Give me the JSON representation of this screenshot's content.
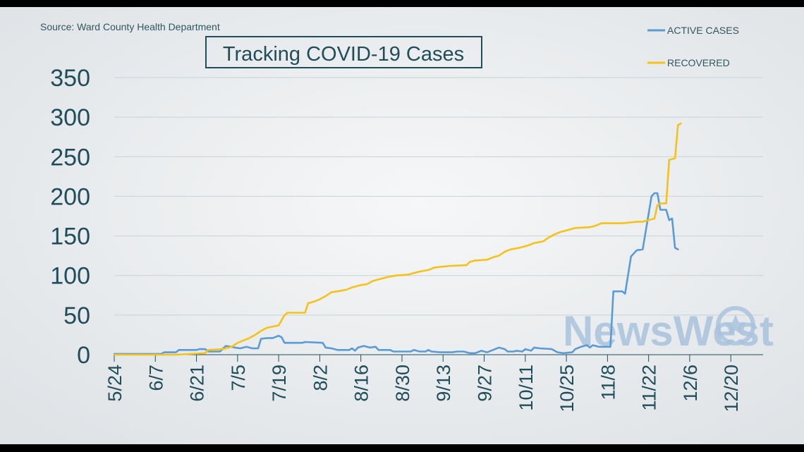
{
  "source": "Source: Ward County Health Department",
  "watermark": "NewsWest",
  "colors": {
    "active": "#5b9bd5",
    "recovered": "#f5c21b",
    "text": "#1f4e5a",
    "grid": "#c9d2d6",
    "background": "#e9ecee"
  },
  "chart_data": {
    "type": "line",
    "title": "Tracking COVID-19 Cases",
    "xlabel": "",
    "ylabel": "",
    "ylim": [
      0,
      350
    ],
    "yticks": [
      0,
      50,
      100,
      150,
      200,
      250,
      300,
      350
    ],
    "xlim": [
      "5/24",
      "12/31"
    ],
    "xticks": [
      "5/24",
      "6/7",
      "6/21",
      "7/5",
      "7/19",
      "8/2",
      "8/16",
      "8/30",
      "9/13",
      "9/27",
      "10/11",
      "10/25",
      "11/8",
      "11/22",
      "12/6",
      "12/20"
    ],
    "grid": true,
    "legend_position": "top-right",
    "series": [
      {
        "name": "ACTIVE CASES",
        "color": "#5b9bd5",
        "points": [
          [
            "5/24",
            1
          ],
          [
            "6/9",
            1
          ],
          [
            "6/10",
            3
          ],
          [
            "6/14",
            3
          ],
          [
            "6/15",
            6
          ],
          [
            "6/21",
            6
          ],
          [
            "6/22",
            7
          ],
          [
            "6/24",
            7
          ],
          [
            "6/25",
            4
          ],
          [
            "6/29",
            4
          ],
          [
            "7/1",
            11
          ],
          [
            "7/3",
            10
          ],
          [
            "7/4",
            9
          ],
          [
            "7/6",
            8
          ],
          [
            "7/8",
            10
          ],
          [
            "7/10",
            8
          ],
          [
            "7/12",
            8
          ],
          [
            "7/13",
            20
          ],
          [
            "7/15",
            21
          ],
          [
            "7/17",
            21
          ],
          [
            "7/19",
            24
          ],
          [
            "7/20",
            22
          ],
          [
            "7/21",
            15
          ],
          [
            "7/27",
            15
          ],
          [
            "7/28",
            16
          ],
          [
            "8/3",
            15
          ],
          [
            "8/4",
            9
          ],
          [
            "8/6",
            8
          ],
          [
            "8/8",
            6
          ],
          [
            "8/12",
            6
          ],
          [
            "8/13",
            8
          ],
          [
            "8/14",
            5
          ],
          [
            "8/15",
            9
          ],
          [
            "8/17",
            11
          ],
          [
            "8/19",
            9
          ],
          [
            "8/21",
            10
          ],
          [
            "8/22",
            6
          ],
          [
            "8/26",
            6
          ],
          [
            "8/27",
            4
          ],
          [
            "9/2",
            4
          ],
          [
            "9/3",
            6
          ],
          [
            "9/5",
            4
          ],
          [
            "9/7",
            4
          ],
          [
            "9/8",
            6
          ],
          [
            "9/9",
            4
          ],
          [
            "9/12",
            3
          ],
          [
            "9/14",
            3
          ],
          [
            "9/16",
            3
          ],
          [
            "9/18",
            4
          ],
          [
            "9/20",
            4
          ],
          [
            "9/22",
            2
          ],
          [
            "9/24",
            2
          ],
          [
            "9/26",
            5
          ],
          [
            "9/28",
            3
          ],
          [
            "9/30",
            6
          ],
          [
            "10/2",
            9
          ],
          [
            "10/4",
            7
          ],
          [
            "10/5",
            4
          ],
          [
            "10/7",
            4
          ],
          [
            "10/8",
            5
          ],
          [
            "10/10",
            4
          ],
          [
            "10/11",
            7
          ],
          [
            "10/12",
            6
          ],
          [
            "10/13",
            5
          ],
          [
            "10/14",
            9
          ],
          [
            "10/16",
            8
          ],
          [
            "10/20",
            7
          ],
          [
            "10/22",
            3
          ],
          [
            "10/24",
            2
          ],
          [
            "10/27",
            3
          ],
          [
            "10/28",
            7
          ],
          [
            "10/30",
            10
          ],
          [
            "11/1",
            12
          ],
          [
            "11/2",
            9
          ],
          [
            "11/3",
            12
          ],
          [
            "11/5",
            10
          ],
          [
            "11/9",
            10
          ],
          [
            "11/10",
            80
          ],
          [
            "11/13",
            80
          ],
          [
            "11/14",
            77
          ],
          [
            "11/16",
            124
          ],
          [
            "11/17",
            128
          ],
          [
            "11/18",
            132
          ],
          [
            "11/20",
            133
          ],
          [
            "11/23",
            200
          ],
          [
            "11/24",
            204
          ],
          [
            "11/25",
            204
          ],
          [
            "11/26",
            183
          ],
          [
            "11/28",
            183
          ],
          [
            "11/29",
            170
          ],
          [
            "11/30",
            172
          ],
          [
            "12/1",
            135
          ],
          [
            "12/2",
            133
          ]
        ]
      },
      {
        "name": "RECOVERED",
        "color": "#f5c21b",
        "points": [
          [
            "5/24",
            0
          ],
          [
            "6/9",
            0
          ],
          [
            "6/14",
            0
          ],
          [
            "6/24",
            2
          ],
          [
            "6/25",
            6
          ],
          [
            "6/30",
            7
          ],
          [
            "7/3",
            10
          ],
          [
            "7/5",
            15
          ],
          [
            "7/7",
            18
          ],
          [
            "7/9",
            21
          ],
          [
            "7/11",
            25
          ],
          [
            "7/13",
            30
          ],
          [
            "7/15",
            34
          ],
          [
            "7/19",
            37
          ],
          [
            "7/21",
            50
          ],
          [
            "7/22",
            53
          ],
          [
            "7/28",
            53
          ],
          [
            "7/29",
            65
          ],
          [
            "7/31",
            67
          ],
          [
            "8/2",
            70
          ],
          [
            "8/4",
            74
          ],
          [
            "8/6",
            79
          ],
          [
            "8/8",
            80
          ],
          [
            "8/11",
            82
          ],
          [
            "8/13",
            85
          ],
          [
            "8/16",
            88
          ],
          [
            "8/18",
            89
          ],
          [
            "8/20",
            93
          ],
          [
            "8/22",
            95
          ],
          [
            "8/25",
            98
          ],
          [
            "8/28",
            100
          ],
          [
            "9/1",
            101
          ],
          [
            "9/3",
            103
          ],
          [
            "9/5",
            105
          ],
          [
            "9/8",
            107
          ],
          [
            "9/10",
            110
          ],
          [
            "9/12",
            111
          ],
          [
            "9/15",
            112
          ],
          [
            "9/21",
            113
          ],
          [
            "9/22",
            117
          ],
          [
            "9/24",
            119
          ],
          [
            "9/28",
            120
          ],
          [
            "9/30",
            123
          ],
          [
            "10/2",
            125
          ],
          [
            "10/4",
            130
          ],
          [
            "10/6",
            133
          ],
          [
            "10/9",
            135
          ],
          [
            "10/12",
            138
          ],
          [
            "10/14",
            141
          ],
          [
            "10/17",
            143
          ],
          [
            "10/19",
            148
          ],
          [
            "10/21",
            152
          ],
          [
            "10/23",
            155
          ],
          [
            "10/26",
            158
          ],
          [
            "10/28",
            160
          ],
          [
            "11/2",
            161
          ],
          [
            "11/4",
            163
          ],
          [
            "11/6",
            166
          ],
          [
            "11/13",
            166
          ],
          [
            "11/18",
            168
          ],
          [
            "11/20",
            168
          ],
          [
            "11/22",
            170
          ],
          [
            "11/24",
            172
          ],
          [
            "11/25",
            189
          ],
          [
            "11/26",
            191
          ],
          [
            "11/28",
            191
          ],
          [
            "11/29",
            246
          ],
          [
            "12/1",
            248
          ],
          [
            "12/2",
            290
          ],
          [
            "12/3",
            292
          ]
        ]
      }
    ]
  }
}
